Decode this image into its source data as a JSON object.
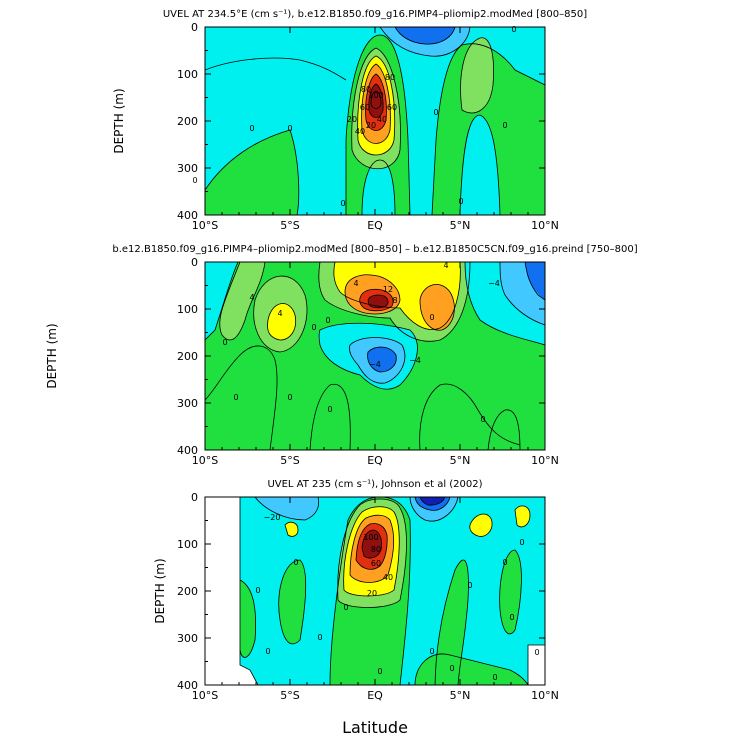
{
  "figure": {
    "xlabel": "Latitude",
    "colors": {
      "lightcyan": "#c8fcff",
      "cyan": "#00f0f0",
      "green": "#20e040",
      "lime": "#80e060",
      "yellow": "#ffff00",
      "orange": "#ffa020",
      "red": "#e03010",
      "darkred": "#901010",
      "lightblue": "#40c8ff",
      "blue": "#1070f0",
      "darkblue": "#1020b0",
      "line": "#000000"
    }
  },
  "chart_data": [
    {
      "type": "heatmap",
      "title": "UVEL AT 234.5°E (cm s⁻¹), b.e12.B1850.f09_g16.PIMP4–pliomip2.modMed [800–850]",
      "ylabel": "DEPTH (m)",
      "xlim": [
        -10,
        10
      ],
      "ylim": [
        400,
        0
      ],
      "x_ticks": [
        "10°S",
        "5°S",
        "EQ",
        "5°N",
        "10°N"
      ],
      "y_ticks": [
        "0",
        "100",
        "200",
        "300",
        "400"
      ],
      "contour_labels": [
        "0",
        "0",
        "0",
        "0",
        "0",
        "0",
        "0",
        "0",
        "20",
        "40",
        "60",
        "80",
        "100",
        "80",
        "60",
        "40",
        "20"
      ],
      "features": [
        {
          "kind": "core",
          "lat": 0,
          "depth": 110,
          "peak": 100
        },
        {
          "kind": "low",
          "lat": 2,
          "depth": 20,
          "value": -20
        }
      ]
    },
    {
      "type": "heatmap",
      "title": "b.e12.B1850.f09_g16.PIMP4–pliomip2.modMed [800–850] – b.e12.B1850C5CN.f09_g16.preind [750–800]",
      "ylabel": "DEPTH (m)",
      "xlim": [
        -10,
        10
      ],
      "ylim": [
        400,
        0
      ],
      "x_ticks": [
        "10°S",
        "5°S",
        "EQ",
        "5°N",
        "10°N"
      ],
      "y_ticks": [
        "0",
        "100",
        "200",
        "300",
        "400"
      ],
      "contour_labels": [
        "4",
        "4",
        "4",
        "−4",
        "4",
        "8",
        "12",
        "0",
        "0",
        "0",
        "0",
        "0",
        "0",
        "0",
        "0",
        "−4",
        "−4"
      ],
      "features": [
        {
          "kind": "core",
          "lat": 0,
          "depth": 90,
          "peak": 20
        },
        {
          "kind": "low",
          "lat": 0,
          "depth": 190,
          "value": -12
        }
      ]
    },
    {
      "type": "heatmap",
      "title": "UVEL AT 235 (cm s⁻¹), Johnson et al (2002)",
      "ylabel": "DEPTH (m)",
      "xlim": [
        -10,
        10
      ],
      "ylim": [
        400,
        0
      ],
      "x_ticks": [
        "10°S",
        "5°S",
        "EQ",
        "5°N",
        "10°N"
      ],
      "y_ticks": [
        "0",
        "100",
        "200",
        "300",
        "400"
      ],
      "contour_labels": [
        "−20",
        "20",
        "40",
        "60",
        "80",
        "100",
        "0",
        "0",
        "0",
        "0",
        "0",
        "0",
        "0",
        "0",
        "0",
        "0",
        "0",
        "0",
        "0",
        "0"
      ],
      "features": [
        {
          "kind": "core",
          "lat": 0,
          "depth": 90,
          "peak": 100
        },
        {
          "kind": "low",
          "lat": 3,
          "depth": 20,
          "value": -40
        }
      ]
    }
  ]
}
